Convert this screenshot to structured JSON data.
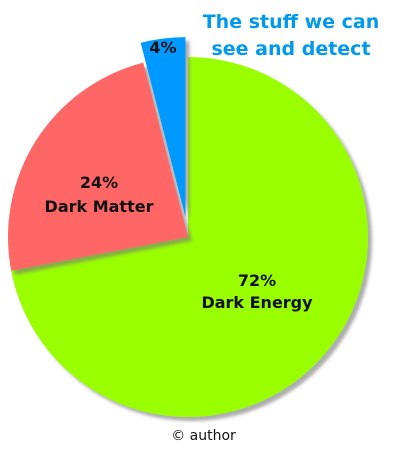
{
  "chart_data": {
    "type": "pie",
    "slices": [
      {
        "label": "Dark Energy",
        "value": 72,
        "value_label": "72%",
        "color": "#99ff00",
        "exploded": false
      },
      {
        "label": "Dark Matter",
        "value": 24,
        "value_label": "24%",
        "color": "#ff6666",
        "exploded": false
      },
      {
        "label": "",
        "value": 4,
        "value_label": "4%",
        "color": "#0099ff",
        "exploded": true
      }
    ],
    "callout": {
      "lines": [
        "The stuff we can",
        "see and detect"
      ],
      "color": "#0099ee"
    }
  },
  "credit": "© author"
}
